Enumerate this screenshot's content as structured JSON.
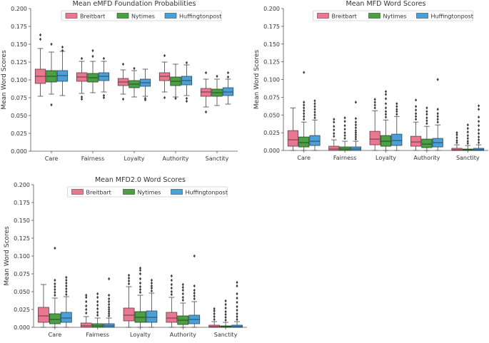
{
  "colors": {
    "breitbart": "#e8788f",
    "nytimes": "#4aa043",
    "huffingtonpost": "#4d9fd8"
  },
  "chart_data": [
    {
      "type": "box",
      "title": "Mean eMFD Foundation Probabilities",
      "xlabel": "",
      "ylabel": "Mean Word Scores",
      "ylim": [
        0,
        0.2
      ],
      "yticks": [
        "0.000",
        "0.025",
        "0.050",
        "0.075",
        "0.100",
        "0.125",
        "0.150",
        "0.175",
        "0.200"
      ],
      "categories": [
        "Care",
        "Fairness",
        "Loyalty",
        "Authority",
        "Sanctity"
      ],
      "legend": {
        "position": "top-center",
        "entries": [
          "Breitbart",
          "Nytimes",
          "Huffingtonpost"
        ]
      },
      "series": [
        {
          "name": "Breitbart",
          "color_key": "breitbart",
          "boxes": [
            {
              "whislo": 0.077,
              "q1": 0.095,
              "med": 0.105,
              "q3": 0.115,
              "whishi": 0.144,
              "fliers": [
                0.163,
                0.157
              ]
            },
            {
              "whislo": 0.081,
              "q1": 0.098,
              "med": 0.104,
              "q3": 0.11,
              "whishi": 0.126,
              "fliers": [
                0.076,
                0.073,
                0.13
              ]
            },
            {
              "whislo": 0.08,
              "q1": 0.092,
              "med": 0.097,
              "q3": 0.102,
              "whishi": 0.114,
              "fliers": [
                0.073,
                0.122
              ]
            },
            {
              "whislo": 0.083,
              "q1": 0.099,
              "med": 0.105,
              "q3": 0.11,
              "whishi": 0.125,
              "fliers": [
                0.075,
                0.134
              ]
            },
            {
              "whislo": 0.062,
              "q1": 0.077,
              "med": 0.083,
              "q3": 0.088,
              "whishi": 0.101,
              "fliers": [
                0.055,
                0.11
              ]
            }
          ]
        },
        {
          "name": "Nytimes",
          "color_key": "nytimes",
          "boxes": [
            {
              "whislo": 0.08,
              "q1": 0.097,
              "med": 0.105,
              "q3": 0.113,
              "whishi": 0.139,
              "fliers": [
                0.065,
                0.15
              ]
            },
            {
              "whislo": 0.082,
              "q1": 0.097,
              "med": 0.103,
              "q3": 0.109,
              "whishi": 0.126,
              "fliers": [
                0.141,
                0.133
              ]
            },
            {
              "whislo": 0.076,
              "q1": 0.089,
              "med": 0.094,
              "q3": 0.099,
              "whishi": 0.113,
              "fliers": [
                0.116
              ]
            },
            {
              "whislo": 0.076,
              "q1": 0.092,
              "med": 0.098,
              "q3": 0.104,
              "whishi": 0.122,
              "fliers": [
                0.074
              ]
            },
            {
              "whislo": 0.064,
              "q1": 0.077,
              "med": 0.082,
              "q3": 0.087,
              "whishi": 0.101,
              "fliers": [
                0.105
              ]
            }
          ]
        },
        {
          "name": "Huffingtonpost",
          "color_key": "huffingtonpost",
          "boxes": [
            {
              "whislo": 0.078,
              "q1": 0.098,
              "med": 0.106,
              "q3": 0.113,
              "whishi": 0.14,
              "fliers": [
                0.146,
                0.141
              ]
            },
            {
              "whislo": 0.083,
              "q1": 0.099,
              "med": 0.105,
              "q3": 0.11,
              "whishi": 0.126,
              "fliers": [
                0.078,
                0.075,
                0.13
              ]
            },
            {
              "whislo": 0.077,
              "q1": 0.091,
              "med": 0.096,
              "q3": 0.101,
              "whishi": 0.115,
              "fliers": [
                0.072,
                0.074
              ]
            },
            {
              "whislo": 0.078,
              "q1": 0.093,
              "med": 0.099,
              "q3": 0.105,
              "whishi": 0.121,
              "fliers": [
                0.07,
                0.074,
                0.124
              ]
            },
            {
              "whislo": 0.066,
              "q1": 0.078,
              "med": 0.083,
              "q3": 0.089,
              "whishi": 0.101,
              "fliers": [
                0.104,
                0.11
              ]
            }
          ]
        }
      ]
    },
    {
      "type": "box",
      "title": "Mean MFD Word Scores",
      "xlabel": "",
      "ylabel": "Mean Word Scores",
      "ylim": [
        0,
        0.2
      ],
      "yticks": [
        "0.000",
        "0.025",
        "0.050",
        "0.075",
        "0.100",
        "0.125",
        "0.150",
        "0.175",
        "0.200"
      ],
      "categories": [
        "Care",
        "Fairness",
        "Loyalty",
        "Authority",
        "Sanctity"
      ],
      "legend": {
        "position": "top-center",
        "entries": [
          "Breitbart",
          "Nytimes",
          "Huffingtonpost"
        ]
      },
      "series": [
        {
          "name": "Breitbart",
          "color_key": "breitbart",
          "boxes": [
            {
              "whislo": 0.0,
              "q1": 0.006,
              "med": 0.015,
              "q3": 0.028,
              "whishi": 0.06,
              "fliers": []
            },
            {
              "whislo": 0.0,
              "q1": 0.0,
              "med": 0.002,
              "q3": 0.006,
              "whishi": 0.015,
              "fliers": [
                0.02,
                0.024,
                0.029,
                0.034,
                0.04,
                0.044
              ]
            },
            {
              "whislo": 0.0,
              "q1": 0.008,
              "med": 0.016,
              "q3": 0.027,
              "whishi": 0.056,
              "fliers": [
                0.06,
                0.064,
                0.068,
                0.072
              ]
            },
            {
              "whislo": 0.0,
              "q1": 0.006,
              "med": 0.012,
              "q3": 0.02,
              "whishi": 0.04,
              "fliers": [
                0.044,
                0.048,
                0.052,
                0.057,
                0.062,
                0.071
              ]
            },
            {
              "whislo": 0.0,
              "q1": 0.0,
              "med": 0.001,
              "q3": 0.003,
              "whishi": 0.008,
              "fliers": [
                0.011,
                0.014,
                0.018,
                0.022,
                0.025
              ]
            }
          ]
        },
        {
          "name": "Nytimes",
          "color_key": "nytimes",
          "boxes": [
            {
              "whislo": 0.0,
              "q1": 0.005,
              "med": 0.011,
              "q3": 0.019,
              "whishi": 0.04,
              "fliers": [
                0.044,
                0.048,
                0.052,
                0.056,
                0.06,
                0.064,
                0.068,
                0.11
              ]
            },
            {
              "whislo": 0.0,
              "q1": 0.0,
              "med": 0.002,
              "q3": 0.005,
              "whishi": 0.013,
              "fliers": [
                0.017,
                0.021,
                0.025,
                0.03,
                0.035,
                0.041,
                0.046
              ]
            },
            {
              "whislo": 0.0,
              "q1": 0.006,
              "med": 0.013,
              "q3": 0.021,
              "whishi": 0.043,
              "fliers": [
                0.047,
                0.051,
                0.055,
                0.06,
                0.066,
                0.073,
                0.079,
                0.083
              ]
            },
            {
              "whislo": 0.0,
              "q1": 0.004,
              "med": 0.009,
              "q3": 0.016,
              "whishi": 0.034,
              "fliers": [
                0.038,
                0.042,
                0.046,
                0.051,
                0.055,
                0.06
              ]
            },
            {
              "whislo": 0.0,
              "q1": 0.0,
              "med": 0.001,
              "q3": 0.002,
              "whishi": 0.007,
              "fliers": [
                0.01,
                0.013,
                0.017,
                0.021,
                0.026,
                0.031,
                0.036
              ]
            }
          ]
        },
        {
          "name": "Huffingtonpost",
          "color_key": "huffingtonpost",
          "boxes": [
            {
              "whislo": 0.0,
              "q1": 0.007,
              "med": 0.013,
              "q3": 0.021,
              "whishi": 0.043,
              "fliers": [
                0.046,
                0.05,
                0.054,
                0.058,
                0.062,
                0.066,
                0.07
              ]
            },
            {
              "whislo": 0.0,
              "q1": 0.0,
              "med": 0.002,
              "q3": 0.005,
              "whishi": 0.013,
              "fliers": [
                0.016,
                0.019,
                0.022,
                0.025,
                0.028,
                0.032,
                0.036,
                0.04,
                0.045,
                0.068
              ]
            },
            {
              "whislo": 0.0,
              "q1": 0.007,
              "med": 0.014,
              "q3": 0.023,
              "whishi": 0.048,
              "fliers": [
                0.051,
                0.055,
                0.058,
                0.062,
                0.066
              ]
            },
            {
              "whislo": 0.0,
              "q1": 0.005,
              "med": 0.011,
              "q3": 0.017,
              "whishi": 0.036,
              "fliers": [
                0.04,
                0.044,
                0.048,
                0.052,
                0.058,
                0.1
              ]
            },
            {
              "whislo": 0.0,
              "q1": 0.0,
              "med": 0.001,
              "q3": 0.003,
              "whishi": 0.008,
              "fliers": [
                0.011,
                0.015,
                0.019,
                0.024,
                0.029,
                0.035,
                0.041,
                0.047,
                0.058,
                0.063
              ]
            }
          ]
        }
      ]
    },
    {
      "type": "box",
      "title": "Mean MFD2.0 Word Scores",
      "xlabel": "",
      "ylabel": "Mean Word Scores",
      "ylim": [
        0,
        0.2
      ],
      "yticks": [
        "0.000",
        "0.025",
        "0.050",
        "0.075",
        "0.100",
        "0.125",
        "0.150",
        "0.175",
        "0.200"
      ],
      "categories": [
        "Care",
        "Fairness",
        "Loyalty",
        "Authority",
        "Sanctity"
      ],
      "legend": {
        "position": "top-center",
        "entries": [
          "Breitbart",
          "Nytimes",
          "Huffingtonpost"
        ]
      },
      "series": [
        {
          "name": "Breitbart",
          "color_key": "breitbart",
          "boxes": [
            {
              "whislo": 0.0,
              "q1": 0.007,
              "med": 0.016,
              "q3": 0.028,
              "whishi": 0.06,
              "fliers": []
            },
            {
              "whislo": 0.0,
              "q1": 0.0,
              "med": 0.002,
              "q3": 0.006,
              "whishi": 0.015,
              "fliers": [
                0.02,
                0.025,
                0.03,
                0.036,
                0.042,
                0.045
              ]
            },
            {
              "whislo": 0.0,
              "q1": 0.009,
              "med": 0.017,
              "q3": 0.027,
              "whishi": 0.057,
              "fliers": [
                0.061,
                0.065,
                0.069,
                0.073
              ]
            },
            {
              "whislo": 0.0,
              "q1": 0.007,
              "med": 0.013,
              "q3": 0.021,
              "whishi": 0.042,
              "fliers": [
                0.046,
                0.05,
                0.055,
                0.06,
                0.066,
                0.072
              ]
            },
            {
              "whislo": 0.0,
              "q1": 0.0,
              "med": 0.001,
              "q3": 0.003,
              "whishi": 0.008,
              "fliers": [
                0.011,
                0.015,
                0.019,
                0.023,
                0.026
              ]
            }
          ]
        },
        {
          "name": "Nytimes",
          "color_key": "nytimes",
          "boxes": [
            {
              "whislo": 0.0,
              "q1": 0.005,
              "med": 0.011,
              "q3": 0.019,
              "whishi": 0.041,
              "fliers": [
                0.045,
                0.049,
                0.053,
                0.057,
                0.061,
                0.066,
                0.111
              ]
            },
            {
              "whislo": 0.0,
              "q1": 0.0,
              "med": 0.002,
              "q3": 0.005,
              "whishi": 0.013,
              "fliers": [
                0.017,
                0.021,
                0.026,
                0.031,
                0.036,
                0.042,
                0.047
              ]
            },
            {
              "whislo": 0.0,
              "q1": 0.007,
              "med": 0.014,
              "q3": 0.022,
              "whishi": 0.045,
              "fliers": [
                0.049,
                0.053,
                0.057,
                0.062,
                0.068,
                0.075,
                0.08,
                0.083
              ]
            },
            {
              "whislo": 0.0,
              "q1": 0.004,
              "med": 0.01,
              "q3": 0.016,
              "whishi": 0.034,
              "fliers": [
                0.038,
                0.042,
                0.047,
                0.052,
                0.056,
                0.06
              ]
            },
            {
              "whislo": 0.0,
              "q1": 0.0,
              "med": 0.001,
              "q3": 0.002,
              "whishi": 0.007,
              "fliers": [
                0.01,
                0.014,
                0.018,
                0.022,
                0.027,
                0.032,
                0.037
              ]
            }
          ]
        },
        {
          "name": "Huffingtonpost",
          "color_key": "huffingtonpost",
          "boxes": [
            {
              "whislo": 0.0,
              "q1": 0.007,
              "med": 0.013,
              "q3": 0.021,
              "whishi": 0.043,
              "fliers": [
                0.046,
                0.05,
                0.054,
                0.058,
                0.062,
                0.066,
                0.07
              ]
            },
            {
              "whislo": 0.0,
              "q1": 0.0,
              "med": 0.002,
              "q3": 0.005,
              "whishi": 0.013,
              "fliers": [
                0.016,
                0.019,
                0.022,
                0.025,
                0.028,
                0.032,
                0.036,
                0.04,
                0.045,
                0.068
              ]
            },
            {
              "whislo": 0.0,
              "q1": 0.007,
              "med": 0.014,
              "q3": 0.023,
              "whishi": 0.048,
              "fliers": [
                0.051,
                0.055,
                0.058,
                0.062,
                0.066
              ]
            },
            {
              "whislo": 0.0,
              "q1": 0.005,
              "med": 0.011,
              "q3": 0.017,
              "whishi": 0.036,
              "fliers": [
                0.04,
                0.044,
                0.048,
                0.052,
                0.058,
                0.1
              ]
            },
            {
              "whislo": 0.0,
              "q1": 0.0,
              "med": 0.001,
              "q3": 0.003,
              "whishi": 0.008,
              "fliers": [
                0.011,
                0.015,
                0.019,
                0.024,
                0.029,
                0.035,
                0.041,
                0.047,
                0.058,
                0.063
              ]
            }
          ]
        }
      ]
    }
  ]
}
